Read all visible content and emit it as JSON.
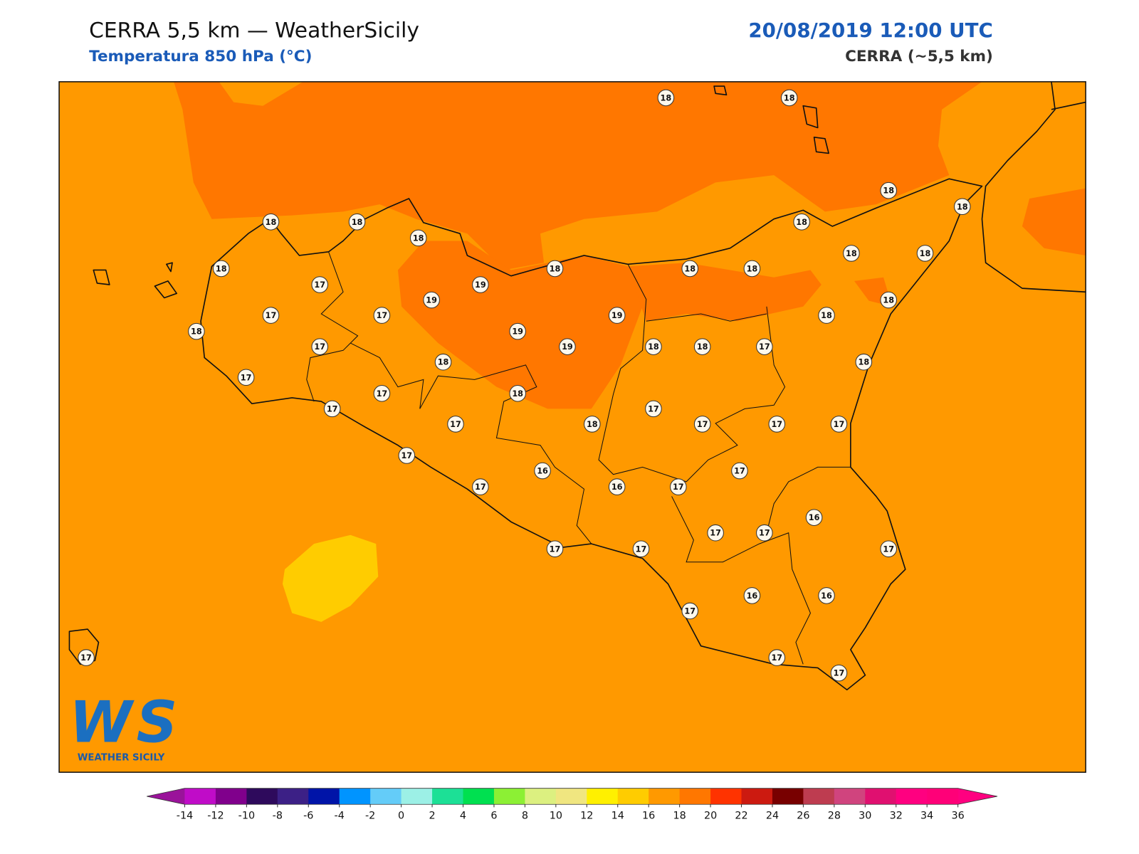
{
  "header": {
    "title": "CERRA 5,5 km — WeatherSicily",
    "subtitle": "Temperatura 850 hPa (°C)",
    "datetime": "20/08/2019 12:00 UTC",
    "model": "CERRA (~5,5 km)"
  },
  "map": {
    "stations": [
      18,
      18,
      18,
      18,
      18,
      18,
      18,
      18,
      18,
      18,
      18,
      18,
      18,
      18,
      17,
      19,
      19,
      17,
      17,
      19,
      18,
      18,
      18,
      19,
      17,
      19,
      18,
      18,
      17,
      18,
      18,
      17,
      17,
      18,
      17,
      17,
      17,
      18,
      17,
      17,
      17,
      17,
      16,
      17,
      17,
      16,
      17,
      16,
      17,
      17,
      17,
      17,
      17,
      17,
      16,
      16,
      17,
      17,
      17
    ],
    "colorbar": {
      "ticks": [
        -14,
        -12,
        -10,
        -8,
        -6,
        -4,
        -2,
        0,
        2,
        4,
        6,
        8,
        10,
        12,
        14,
        16,
        18,
        20,
        22,
        24,
        26,
        28,
        30,
        32,
        34,
        36
      ],
      "colors": [
        "#c00cc8",
        "#80008c",
        "#2e0a5c",
        "#3c2086",
        "#0014a8",
        "#0094ff",
        "#64ccf8",
        "#9cf0e6",
        "#1ce096",
        "#00e050",
        "#8cf034",
        "#dcf080",
        "#f0e680",
        "#fff000",
        "#ffcc00",
        "#ff9900",
        "#ff7700",
        "#ff3300",
        "#cc1a10",
        "#780000",
        "#be3c50",
        "#d0447e",
        "#e01070",
        "#ff0080",
        "#ff0078"
      ],
      "under_color": "#9a139a",
      "over_color": "#ff0080"
    },
    "logo": {
      "mark": "WS",
      "name": "WEATHER SICILY"
    }
  }
}
